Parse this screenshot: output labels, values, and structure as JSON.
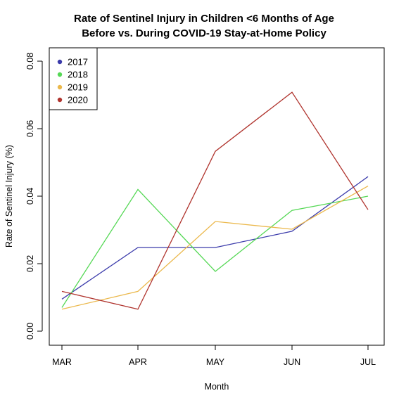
{
  "chart_data": {
    "type": "line",
    "title_lines": [
      "Rate of Sentinel Injury in Children <6 Months of Age",
      "Before vs. During COVID-19 Stay-at-Home Policy"
    ],
    "xlabel": "Month",
    "ylabel": "Rate of Sentinel Injury (%)",
    "categories": [
      "MAR",
      "APR",
      "MAY",
      "JUN",
      "JUL"
    ],
    "ylim": [
      0,
      0.08
    ],
    "yticks": [
      0.0,
      0.02,
      0.04,
      0.06,
      0.08
    ],
    "ytick_labels": [
      "0.00",
      "0.02",
      "0.04",
      "0.06",
      "0.08"
    ],
    "legend_position": "top-left",
    "series": [
      {
        "name": "2017",
        "color": "#3b3bab",
        "values": [
          0.0095,
          0.0248,
          0.0248,
          0.0296,
          0.0458
        ]
      },
      {
        "name": "2018",
        "color": "#55d855",
        "values": [
          0.007,
          0.042,
          0.0177,
          0.0358,
          0.04
        ]
      },
      {
        "name": "2019",
        "color": "#ebb84b",
        "values": [
          0.0065,
          0.0118,
          0.0325,
          0.0302,
          0.043
        ]
      },
      {
        "name": "2020",
        "color": "#b0342e",
        "values": [
          0.0118,
          0.0065,
          0.0533,
          0.0708,
          0.036
        ]
      }
    ]
  }
}
